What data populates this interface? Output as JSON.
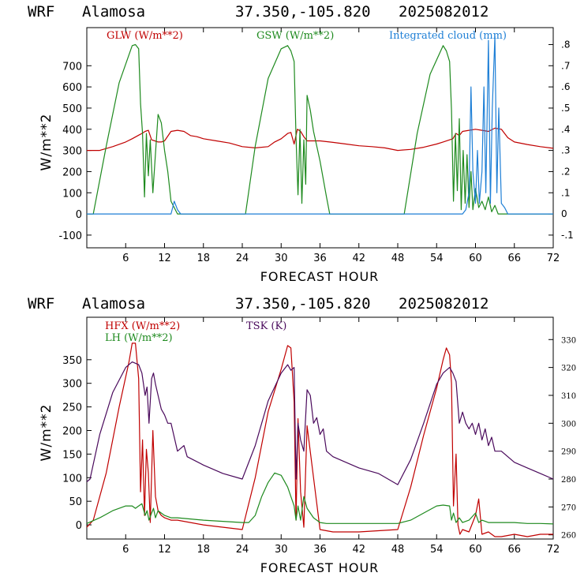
{
  "chart_data": [
    {
      "type": "line",
      "title": {
        "model": "WRF",
        "station": "Alamosa",
        "coords": "37.350,-105.820",
        "run": "2025082012"
      },
      "xlabel": "FORECAST HOUR",
      "ylabel": "W/m**2",
      "xlim": [
        0,
        72
      ],
      "ylim": [
        -160,
        880
      ],
      "xticks": [
        6,
        12,
        18,
        24,
        30,
        36,
        42,
        48,
        54,
        60,
        66,
        72
      ],
      "yticks": [
        -100,
        0,
        100,
        200,
        300,
        400,
        500,
        600,
        700
      ],
      "y2lim": [
        -0.16,
        0.88
      ],
      "y2ticks": [
        -0.1,
        0,
        0.1,
        0.2,
        0.3,
        0.4,
        0.5,
        0.6,
        0.7,
        0.8
      ],
      "y2ticklabels": [
        "-.1",
        "0",
        ".1",
        ".2",
        ".3",
        ".4",
        ".5",
        ".6",
        ".7",
        ".8"
      ],
      "legend": {
        "placement": "top"
      },
      "series": [
        {
          "name": "GLW (W/m**2)",
          "axis": "left",
          "color": "#c00000",
          "x": [
            0,
            2,
            4,
            6,
            7,
            8,
            8.5,
            9,
            9.5,
            10,
            10.5,
            11,
            11.5,
            12,
            13,
            14,
            15,
            16,
            17,
            18,
            20,
            22,
            24,
            26,
            28,
            29,
            30,
            31,
            31.5,
            32,
            32.5,
            33,
            33.5,
            34,
            35,
            36,
            38,
            40,
            42,
            44,
            46,
            48,
            50,
            52,
            54,
            55,
            56,
            56.5,
            57,
            57.5,
            58,
            59,
            60,
            61,
            62,
            63,
            64,
            65,
            66,
            68,
            70,
            72
          ],
          "y": [
            300,
            300,
            318,
            340,
            355,
            372,
            380,
            390,
            395,
            350,
            345,
            340,
            340,
            345,
            390,
            395,
            390,
            370,
            365,
            355,
            345,
            335,
            318,
            312,
            318,
            340,
            355,
            380,
            385,
            330,
            400,
            390,
            365,
            345,
            345,
            345,
            338,
            330,
            322,
            318,
            312,
            300,
            305,
            315,
            330,
            340,
            350,
            355,
            380,
            370,
            390,
            395,
            400,
            395,
            390,
            405,
            400,
            360,
            340,
            328,
            318,
            310
          ]
        },
        {
          "name": "GSW (W/m**2)",
          "axis": "left",
          "color": "#1e8a1e",
          "x": [
            0,
            1,
            3,
            5,
            7,
            7.5,
            8,
            8.3,
            8.6,
            8.9,
            9.2,
            9.5,
            9.8,
            10.2,
            10.5,
            11,
            11.5,
            12,
            12.5,
            13,
            14,
            24,
            24.5,
            26,
            28,
            30,
            31,
            31.5,
            32,
            32.3,
            32.6,
            32.9,
            33.2,
            33.5,
            33.8,
            34,
            34.5,
            35,
            36,
            37,
            37.5,
            48,
            49,
            51,
            53,
            55,
            55.5,
            56,
            56.3,
            56.6,
            56.9,
            57.2,
            57.5,
            57.8,
            58.1,
            58.4,
            58.7,
            59,
            59.3,
            59.6,
            60,
            60.5,
            61,
            61.5,
            62,
            62.5,
            63,
            63.5,
            64,
            72
          ],
          "y": [
            0,
            0,
            320,
            620,
            795,
            800,
            780,
            520,
            380,
            80,
            380,
            180,
            350,
            100,
            240,
            470,
            430,
            300,
            200,
            60,
            0,
            0,
            0,
            320,
            640,
            780,
            795,
            770,
            720,
            360,
            90,
            400,
            50,
            350,
            140,
            560,
            490,
            390,
            250,
            80,
            0,
            0,
            0,
            380,
            660,
            795,
            770,
            720,
            490,
            60,
            380,
            110,
            450,
            20,
            300,
            50,
            280,
            30,
            200,
            20,
            120,
            30,
            60,
            20,
            80,
            10,
            40,
            0,
            0,
            0
          ]
        },
        {
          "name": "Integrated cloud (mm)",
          "axis": "right",
          "color": "#1e7fd6",
          "x": [
            0,
            13,
            13.5,
            14,
            14.5,
            58,
            58.5,
            59,
            59.3,
            59.6,
            60,
            60.3,
            60.6,
            61,
            61.3,
            61.6,
            62,
            62.3,
            62.6,
            63,
            63.3,
            63.6,
            64,
            64.5,
            65,
            72
          ],
          "y": [
            0,
            0,
            0.06,
            0.02,
            0,
            0,
            0.02,
            0.1,
            0.6,
            0.2,
            0.05,
            0.3,
            0.05,
            0.2,
            0.6,
            0.1,
            0.82,
            0.05,
            0.5,
            0.84,
            0.1,
            0.5,
            0.05,
            0.03,
            0,
            0
          ]
        }
      ]
    },
    {
      "type": "line",
      "title": {
        "model": "WRF",
        "station": "Alamosa",
        "coords": "37.350,-105.820",
        "run": "2025082012"
      },
      "xlabel": "FORECAST HOUR",
      "ylabel": "W/m**2",
      "xlim": [
        0,
        72
      ],
      "ylim": [
        -30,
        440
      ],
      "xticks": [
        6,
        12,
        18,
        24,
        30,
        36,
        42,
        48,
        54,
        60,
        66,
        72
      ],
      "yticks": [
        0,
        50,
        100,
        150,
        200,
        250,
        300,
        350
      ],
      "y2lim": [
        258.5,
        338
      ],
      "y2ticks": [
        260,
        270,
        280,
        290,
        300,
        310,
        320,
        330
      ],
      "legend": {
        "placement": "top-left"
      },
      "series": [
        {
          "name": "HFX (W/m**2)",
          "axis": "left",
          "color": "#c00000",
          "x": [
            0,
            1,
            3,
            5,
            6.5,
            7,
            7.5,
            8,
            8.3,
            8.6,
            8.9,
            9.2,
            9.5,
            9.8,
            10.2,
            10.6,
            11,
            11.5,
            12,
            13,
            14,
            18,
            24,
            26,
            28,
            30,
            31,
            31.5,
            32,
            32.3,
            32.6,
            33,
            33.5,
            34,
            35,
            36,
            38,
            42,
            48,
            50,
            52,
            54,
            55,
            55.5,
            56,
            56.3,
            56.6,
            57,
            57.3,
            57.6,
            58,
            59,
            60,
            60.5,
            61,
            62,
            63,
            64,
            66,
            68,
            70,
            72
          ],
          "y": [
            -5,
            10,
            110,
            250,
            345,
            385,
            385,
            310,
            70,
            180,
            20,
            160,
            110,
            5,
            200,
            60,
            30,
            20,
            15,
            10,
            10,
            0,
            -10,
            100,
            240,
            330,
            380,
            375,
            260,
            10,
            225,
            70,
            -5,
            210,
            100,
            -10,
            -15,
            -15,
            -10,
            80,
            190,
            290,
            350,
            375,
            360,
            300,
            40,
            150,
            0,
            -20,
            -10,
            -15,
            20,
            55,
            -20,
            -15,
            -25,
            -25,
            -20,
            -25,
            -20,
            -20
          ]
        },
        {
          "name": "LH (W/m**2)",
          "axis": "left",
          "color": "#1e8a1e",
          "x": [
            0,
            2,
            4,
            6,
            7,
            7.5,
            8,
            8.5,
            9,
            9.3,
            9.6,
            10,
            10.3,
            10.6,
            11,
            12,
            13,
            14,
            18,
            24,
            25,
            26,
            27,
            28,
            29,
            30,
            31,
            31.5,
            32,
            32.3,
            32.6,
            33,
            33.5,
            34,
            35,
            36,
            37,
            42,
            48,
            50,
            52,
            54,
            55,
            56,
            56.3,
            56.6,
            57,
            57.5,
            58,
            59,
            60,
            60.5,
            61,
            62,
            64,
            66,
            68,
            70,
            72
          ],
          "y": [
            3,
            15,
            30,
            40,
            40,
            35,
            40,
            45,
            20,
            30,
            10,
            25,
            35,
            15,
            30,
            20,
            15,
            15,
            10,
            5,
            5,
            20,
            60,
            90,
            110,
            105,
            80,
            60,
            40,
            10,
            40,
            10,
            60,
            35,
            15,
            5,
            3,
            3,
            3,
            10,
            25,
            40,
            42,
            40,
            10,
            25,
            5,
            15,
            5,
            10,
            25,
            5,
            10,
            5,
            5,
            5,
            3,
            3,
            2
          ]
        },
        {
          "name": "TSK (K)",
          "axis": "right",
          "color": "#4a0a5c",
          "x": [
            0,
            0.5,
            2,
            4,
            6,
            7,
            8,
            8.5,
            9,
            9.3,
            9.6,
            10,
            10.3,
            10.6,
            11,
            11.5,
            12,
            12.5,
            13,
            14,
            15,
            15.5,
            18,
            21,
            24,
            26,
            28,
            30,
            31,
            31.5,
            32,
            32.3,
            32.6,
            33,
            33.5,
            34,
            34.5,
            35,
            35.5,
            36,
            36.5,
            37,
            38,
            40,
            42,
            45,
            48,
            50,
            52,
            54,
            55,
            56,
            56.5,
            57,
            57.5,
            58,
            58.5,
            59,
            59.5,
            60,
            60.5,
            61,
            61.5,
            62,
            62.5,
            63,
            64,
            66,
            68,
            70,
            72
          ],
          "y": [
            279,
            280,
            296,
            311,
            320,
            322,
            321,
            318,
            310,
            313,
            300,
            316,
            318,
            314,
            310,
            305,
            303,
            300,
            300,
            290,
            292,
            288,
            285,
            282,
            280,
            292,
            308,
            318,
            321,
            319,
            320,
            280,
            300,
            294,
            290,
            312,
            310,
            300,
            302,
            296,
            298,
            290,
            288,
            286,
            284,
            282,
            278,
            287,
            300,
            314,
            318,
            320,
            318,
            315,
            300,
            304,
            300,
            298,
            300,
            296,
            300,
            294,
            298,
            292,
            295,
            290,
            290,
            286,
            284,
            282,
            280
          ]
        }
      ]
    }
  ]
}
